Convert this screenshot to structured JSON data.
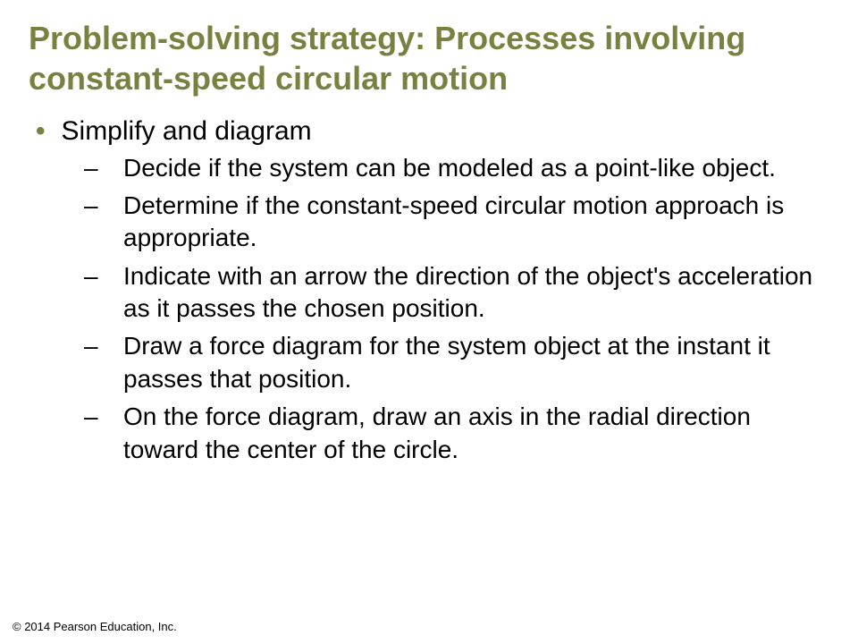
{
  "title": "Problem-solving strategy: Processes involving constant-speed circular motion",
  "main_bullet": {
    "marker": "•",
    "text": "Simplify and diagram"
  },
  "sub_bullets": [
    {
      "marker": "–",
      "text": "Decide if the system can be modeled as a point-like object."
    },
    {
      "marker": "–",
      "text": "Determine if the constant-speed circular motion approach is appropriate."
    },
    {
      "marker": "–",
      "text": "Indicate with an arrow the direction of the object's acceleration as it passes the chosen position."
    },
    {
      "marker": "–",
      "text": "Draw a force diagram for the system object at the instant it passes that position."
    },
    {
      "marker": "–",
      "text": "On the force diagram, draw an axis in the radial direction toward the center of the circle."
    }
  ],
  "copyright": "© 2014 Pearson Education, Inc.",
  "colors": {
    "title_color": "#7a8140",
    "bullet_marker_color": "#7a8140",
    "text_color": "#000000",
    "background": "#ffffff"
  },
  "typography": {
    "title_fontsize": 36,
    "bullet_fontsize": 30,
    "sub_fontsize": 28,
    "copyright_fontsize": 13,
    "title_weight": "bold"
  }
}
